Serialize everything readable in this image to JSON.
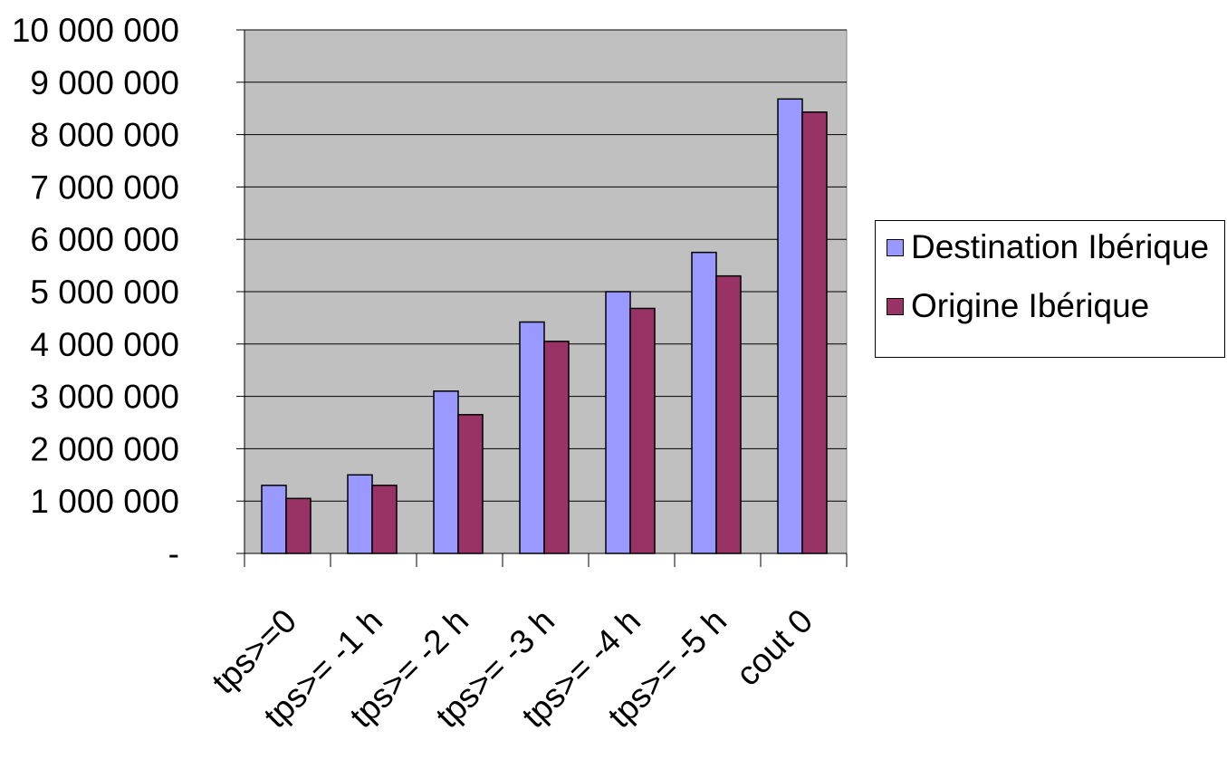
{
  "chart_data": {
    "type": "bar",
    "title": "",
    "xlabel": "",
    "ylabel": "",
    "categories": [
      "tps>=0",
      "tps>= -1 h",
      "tps>= -2 h",
      "tps>= -3 h",
      "tps>= -4 h",
      "tps>= -5 h",
      "cout 0"
    ],
    "series": [
      {
        "name": "Destination Ibérique",
        "color": "#9999ff",
        "values": [
          1300000,
          1500000,
          3100000,
          4420000,
          5000000,
          5750000,
          8680000
        ]
      },
      {
        "name": "Origine Ibérique",
        "color": "#993366",
        "values": [
          1050000,
          1300000,
          2650000,
          4050000,
          4680000,
          5300000,
          8430000
        ]
      }
    ],
    "ylim": [
      0,
      10000000
    ],
    "yticks": [
      "-",
      "1 000 000",
      "2 000 000",
      "3 000 000",
      "4 000 000",
      "5 000 000",
      "6 000 000",
      "7 000 000",
      "8 000 000",
      "9 000 000",
      "10 000 000"
    ],
    "grid": true,
    "plot_background": "#c0c0c0",
    "legend_position": "right"
  }
}
